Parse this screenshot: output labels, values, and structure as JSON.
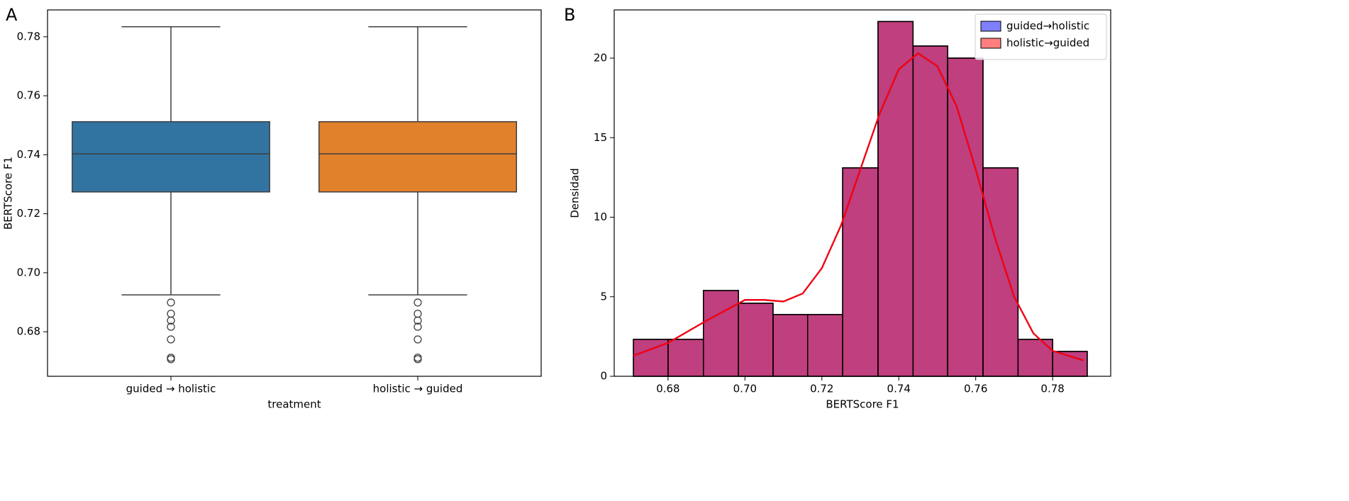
{
  "chart_data": [
    {
      "type": "box",
      "panel_label": "A",
      "y_label": "BERTScore F1",
      "x_label": "treatment",
      "categories": [
        "guided → holistic",
        "holistic → guided"
      ],
      "colors": [
        "#3274a1",
        "#e1812c"
      ],
      "boxes": [
        {
          "whislo": 0.6925,
          "q1": 0.7274,
          "med": 0.7403,
          "q3": 0.7512,
          "whishi": 0.7834,
          "fliers": [
            0.6899,
            0.6861,
            0.6838,
            0.6817,
            0.6774,
            0.6712,
            0.6707
          ]
        },
        {
          "whislo": 0.6925,
          "q1": 0.7274,
          "med": 0.7403,
          "q3": 0.7512,
          "whishi": 0.7834,
          "fliers": [
            0.6899,
            0.6861,
            0.6838,
            0.6817,
            0.6774,
            0.6712,
            0.6707
          ]
        }
      ],
      "ylim": [
        0.6649,
        0.7891
      ],
      "yticks": [
        0.68,
        {
          "value": 0.7,
          "label": "0.70"
        },
        0.72,
        0.74,
        0.76,
        0.78
      ]
    },
    {
      "type": "histogram",
      "panel_label": "B",
      "x_label": "BERTScore F1",
      "y_label": "Densidad",
      "bins": [
        0.671,
        0.68,
        0.6892,
        0.6983,
        0.7073,
        0.7163,
        0.7254,
        0.7346,
        0.7437,
        0.7527,
        0.7619,
        0.771,
        0.78,
        0.789
      ],
      "series": [
        {
          "name": "guided→holistic",
          "color": "#0000ff",
          "values": [
            2.32,
            2.32,
            5.39,
            4.59,
            3.88,
            3.88,
            13.1,
            22.3,
            20.76,
            20.0,
            13.1,
            2.32,
            1.56
          ],
          "kde": [
            1.3,
            2.1,
            3.5,
            4.8,
            4.8,
            4.7,
            5.2,
            6.8,
            9.5,
            13.0,
            16.5,
            19.3,
            20.3,
            19.5,
            17.0,
            13.0,
            8.7,
            5.0,
            2.7,
            1.6,
            1.0
          ]
        },
        {
          "name": "holistic→guided",
          "color": "#ff0000",
          "values": [
            2.32,
            2.32,
            5.39,
            4.59,
            3.88,
            3.88,
            13.1,
            22.3,
            20.76,
            20.0,
            13.1,
            2.32,
            1.56
          ],
          "kde": [
            1.3,
            2.1,
            3.5,
            4.8,
            4.8,
            4.7,
            5.2,
            6.8,
            9.5,
            13.0,
            16.5,
            19.3,
            20.3,
            19.5,
            17.0,
            13.0,
            8.7,
            5.0,
            2.7,
            1.6,
            1.0
          ]
        }
      ],
      "kde_x": [
        0.671,
        0.68,
        0.69,
        0.7,
        0.705,
        0.71,
        0.715,
        0.72,
        0.725,
        0.73,
        0.735,
        0.74,
        0.745,
        0.75,
        0.755,
        0.76,
        0.765,
        0.77,
        0.775,
        0.78,
        0.788
      ],
      "xlim": [
        0.666,
        0.7951
      ],
      "ylim": [
        0,
        23.03
      ],
      "xticks": [
        0.68,
        {
          "value": 0.7,
          "label": "0.70"
        },
        0.72,
        0.74,
        0.76,
        0.78
      ],
      "yticks": [
        0,
        5,
        10,
        15,
        20
      ],
      "legend": "upper right",
      "alpha": 0.5
    }
  ]
}
